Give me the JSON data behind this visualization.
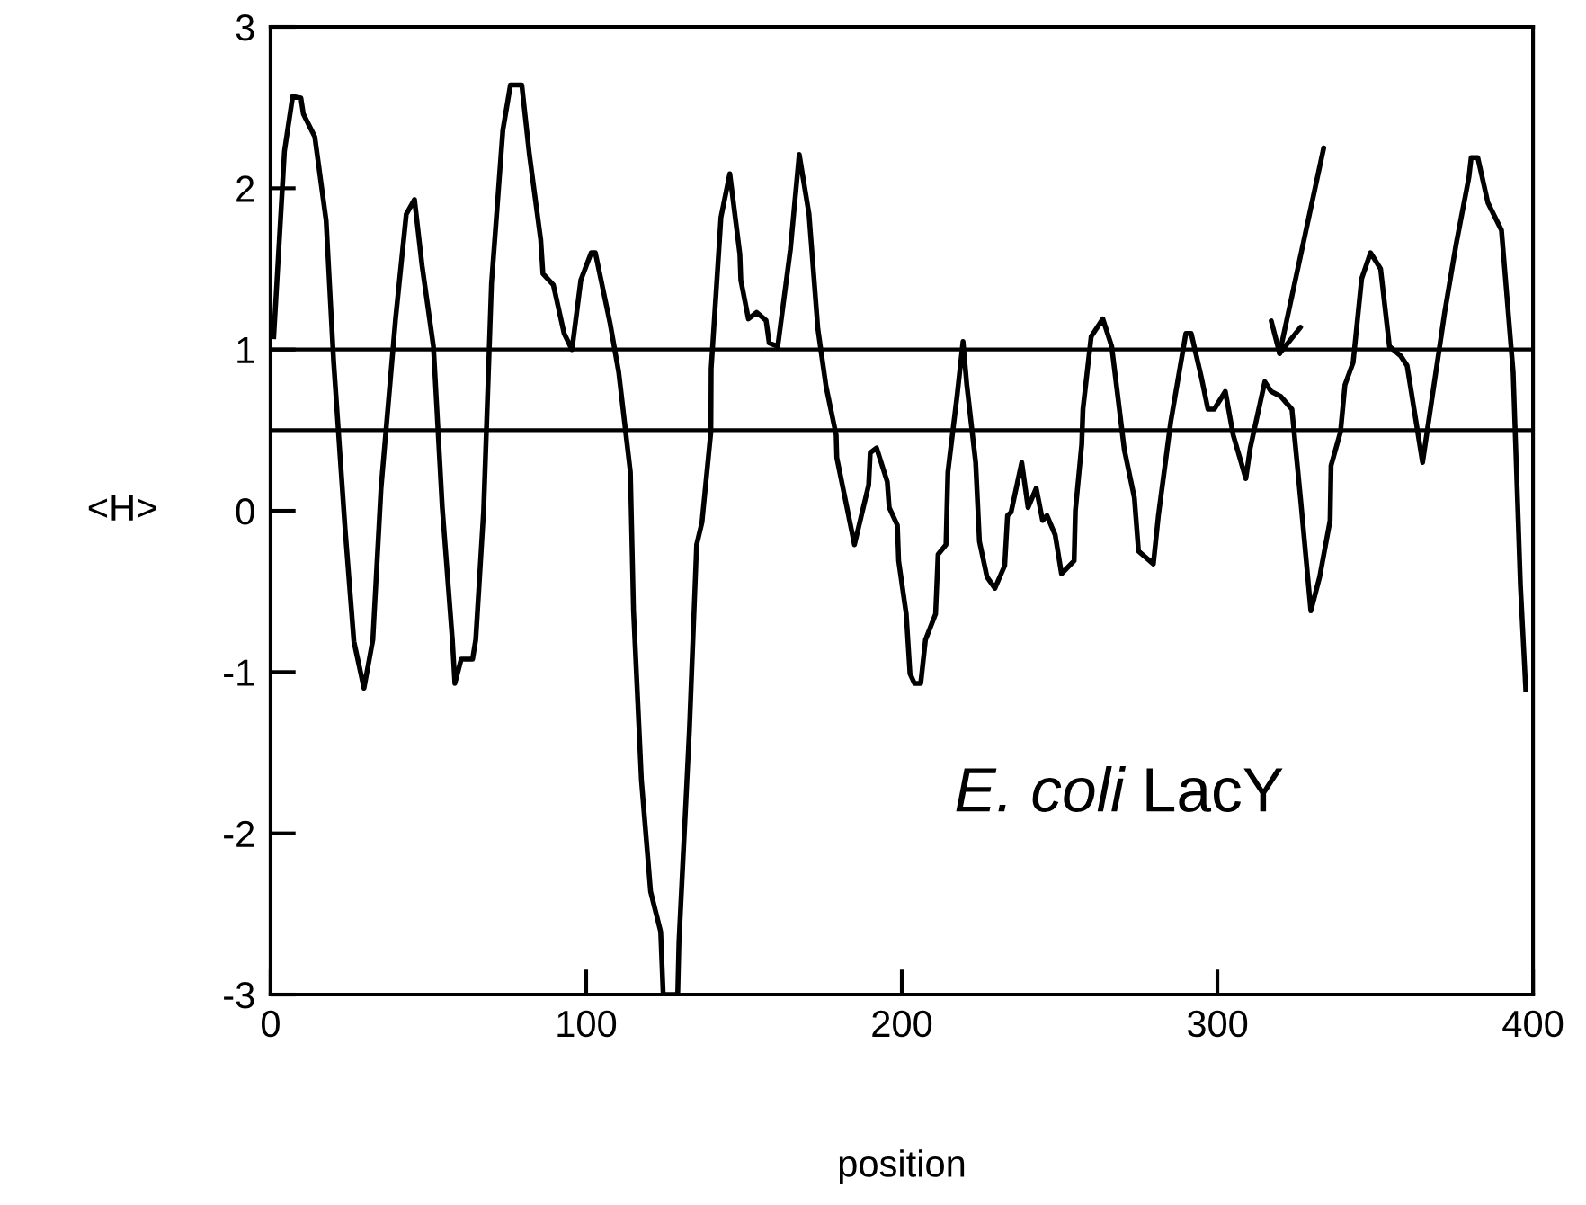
{
  "chart_data": {
    "type": "line",
    "xlabel": "position",
    "ylabel": "<H>",
    "xlim": [
      0,
      400
    ],
    "ylim": [
      -3,
      3
    ],
    "xticks": [
      0,
      100,
      200,
      300,
      400
    ],
    "yticks": [
      -3,
      -2,
      -1,
      0,
      1,
      2,
      3
    ],
    "grid": false,
    "legend": false,
    "marker": "none",
    "line_style": "solid",
    "ref_lines": [
      {
        "axis": "y",
        "value": 1,
        "color": "#000000"
      },
      {
        "axis": "y",
        "value": 0.5,
        "color": "#000000"
      }
    ],
    "annotations": [
      "E. coli LacY"
    ],
    "series": [
      {
        "color": "#000000",
        "x": [
          1,
          4.4,
          7,
          9.6,
          10.4,
          14,
          17.6,
          20,
          23.6,
          26.4,
          29.6,
          32.4,
          35,
          39.6,
          43,
          45.6,
          48,
          51.6,
          54.4,
          57.6,
          58.4,
          60.4,
          64,
          65,
          67.5,
          70,
          73.6,
          76,
          79.6,
          82,
          85.6,
          86.3,
          89.6,
          93,
          95.5,
          98.3,
          101.6,
          102.9,
          107.6,
          110.3,
          114,
          115,
          117.5,
          120.4,
          123.6,
          124.4,
          129,
          129.4,
          132.7,
          135,
          136.7,
          139.5,
          139.6,
          142.7,
          145.5,
          148.7,
          149,
          151.4,
          154,
          157,
          158,
          160.7,
          164.7,
          167.5,
          170.6,
          173.4,
          176,
          179.2,
          179.4,
          182,
          185,
          189.5,
          190,
          192,
          195.4,
          196,
          198.6,
          199,
          201.4,
          202.6,
          204,
          206,
          207.5,
          210.7,
          211.5,
          214,
          214.6,
          217.5,
          219.4,
          220.6,
          223.4,
          224.6,
          227,
          229.5,
          232.6,
          233.5,
          234.6,
          238,
          240,
          242.6,
          244.6,
          246,
          248.6,
          250.6,
          254.6,
          255,
          257,
          257.4,
          260,
          263.7,
          266.5,
          270.5,
          273.7,
          275,
          279.7,
          281.3,
          285.2,
          290,
          291.7,
          295,
          297,
          299,
          302.5,
          305,
          309,
          310.4,
          315,
          317,
          320,
          323.6,
          326.5,
          329.6,
          332.4,
          335.7,
          336,
          339,
          340.4,
          343,
          345.7,
          348.5,
          351.7,
          354.5,
          358.1,
          360.1,
          365,
          372,
          375.7,
          379.7,
          380.4,
          382.5,
          385.7,
          390,
          393.7,
          396,
          397.7
        ],
        "values": [
          1.08,
          2.23,
          2.57,
          2.56,
          2.46,
          2.32,
          1.8,
          0.92,
          -0.11,
          -0.81,
          -1.1,
          -0.8,
          0.14,
          1.19,
          1.84,
          1.93,
          1.52,
          1.02,
          0.02,
          -0.8,
          -1.07,
          -0.92,
          -0.92,
          -0.8,
          0.0,
          1.41,
          2.36,
          2.64,
          2.64,
          2.21,
          1.68,
          1.47,
          1.4,
          1.1,
          1.0,
          1.43,
          1.6,
          1.6,
          1.16,
          0.86,
          0.24,
          -0.62,
          -1.67,
          -2.36,
          -2.61,
          -3.0,
          -3.0,
          -2.67,
          -1.36,
          -0.21,
          -0.07,
          0.49,
          0.88,
          1.82,
          2.09,
          1.59,
          1.43,
          1.19,
          1.23,
          1.18,
          1.04,
          1.02,
          1.62,
          2.21,
          1.84,
          1.13,
          0.77,
          0.47,
          0.33,
          0.08,
          -0.21,
          0.16,
          0.36,
          0.39,
          0.18,
          0.02,
          -0.09,
          -0.31,
          -0.64,
          -1.01,
          -1.07,
          -1.07,
          -0.8,
          -0.64,
          -0.27,
          -0.21,
          0.24,
          0.71,
          1.05,
          0.78,
          0.3,
          -0.19,
          -0.41,
          -0.48,
          -0.34,
          -0.03,
          -0.01,
          0.3,
          0.02,
          0.14,
          -0.06,
          -0.03,
          -0.15,
          -0.39,
          -0.31,
          0.0,
          0.41,
          0.63,
          1.08,
          1.19,
          1.02,
          0.38,
          0.08,
          -0.25,
          -0.33,
          -0.03,
          0.55,
          1.1,
          1.1,
          0.82,
          0.63,
          0.63,
          0.74,
          0.47,
          0.2,
          0.39,
          0.8,
          0.74,
          0.71,
          0.63,
          0.04,
          -0.62,
          -0.41,
          -0.06,
          0.28,
          0.49,
          0.78,
          0.92,
          1.44,
          1.6,
          1.5,
          1.02,
          0.96,
          0.9,
          0.3,
          1.23,
          1.66,
          2.07,
          2.19,
          2.19,
          1.91,
          1.74,
          0.86,
          -0.46,
          -1.11
        ]
      }
    ]
  }
}
